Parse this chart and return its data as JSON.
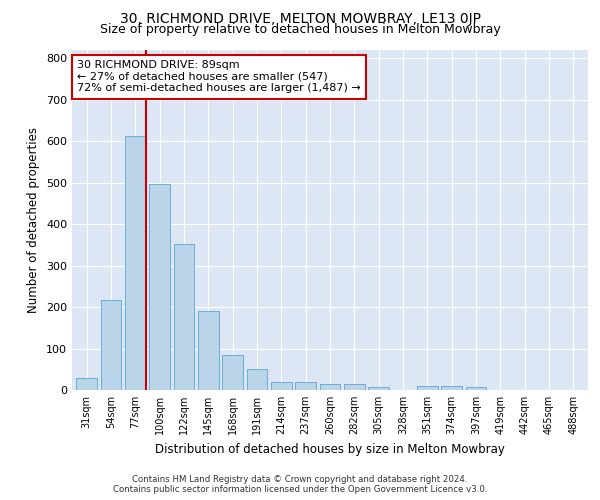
{
  "title": "30, RICHMOND DRIVE, MELTON MOWBRAY, LE13 0JP",
  "subtitle": "Size of property relative to detached houses in Melton Mowbray",
  "xlabel": "Distribution of detached houses by size in Melton Mowbray",
  "ylabel": "Number of detached properties",
  "bin_labels": [
    "31sqm",
    "54sqm",
    "77sqm",
    "100sqm",
    "122sqm",
    "145sqm",
    "168sqm",
    "191sqm",
    "214sqm",
    "237sqm",
    "260sqm",
    "282sqm",
    "305sqm",
    "328sqm",
    "351sqm",
    "374sqm",
    "397sqm",
    "419sqm",
    "442sqm",
    "465sqm",
    "488sqm"
  ],
  "bar_values": [
    30,
    218,
    613,
    497,
    353,
    190,
    84,
    51,
    20,
    20,
    15,
    15,
    8,
    0,
    10,
    10,
    7,
    0,
    0,
    0,
    0
  ],
  "bar_color": "#bad4ea",
  "bar_edge_color": "#6aaed6",
  "vline_color": "#cc0000",
  "annotation_text": "30 RICHMOND DRIVE: 89sqm\n← 27% of detached houses are smaller (547)\n72% of semi-detached houses are larger (1,487) →",
  "annotation_box_color": "#ffffff",
  "annotation_box_edge": "#cc0000",
  "ylim": [
    0,
    820
  ],
  "yticks": [
    0,
    100,
    200,
    300,
    400,
    500,
    600,
    700,
    800
  ],
  "plot_background": "#dce6f5",
  "footnote": "Contains HM Land Registry data © Crown copyright and database right 2024.\nContains public sector information licensed under the Open Government Licence v3.0.",
  "title_fontsize": 10,
  "subtitle_fontsize": 9,
  "xlabel_fontsize": 8.5,
  "ylabel_fontsize": 8.5
}
